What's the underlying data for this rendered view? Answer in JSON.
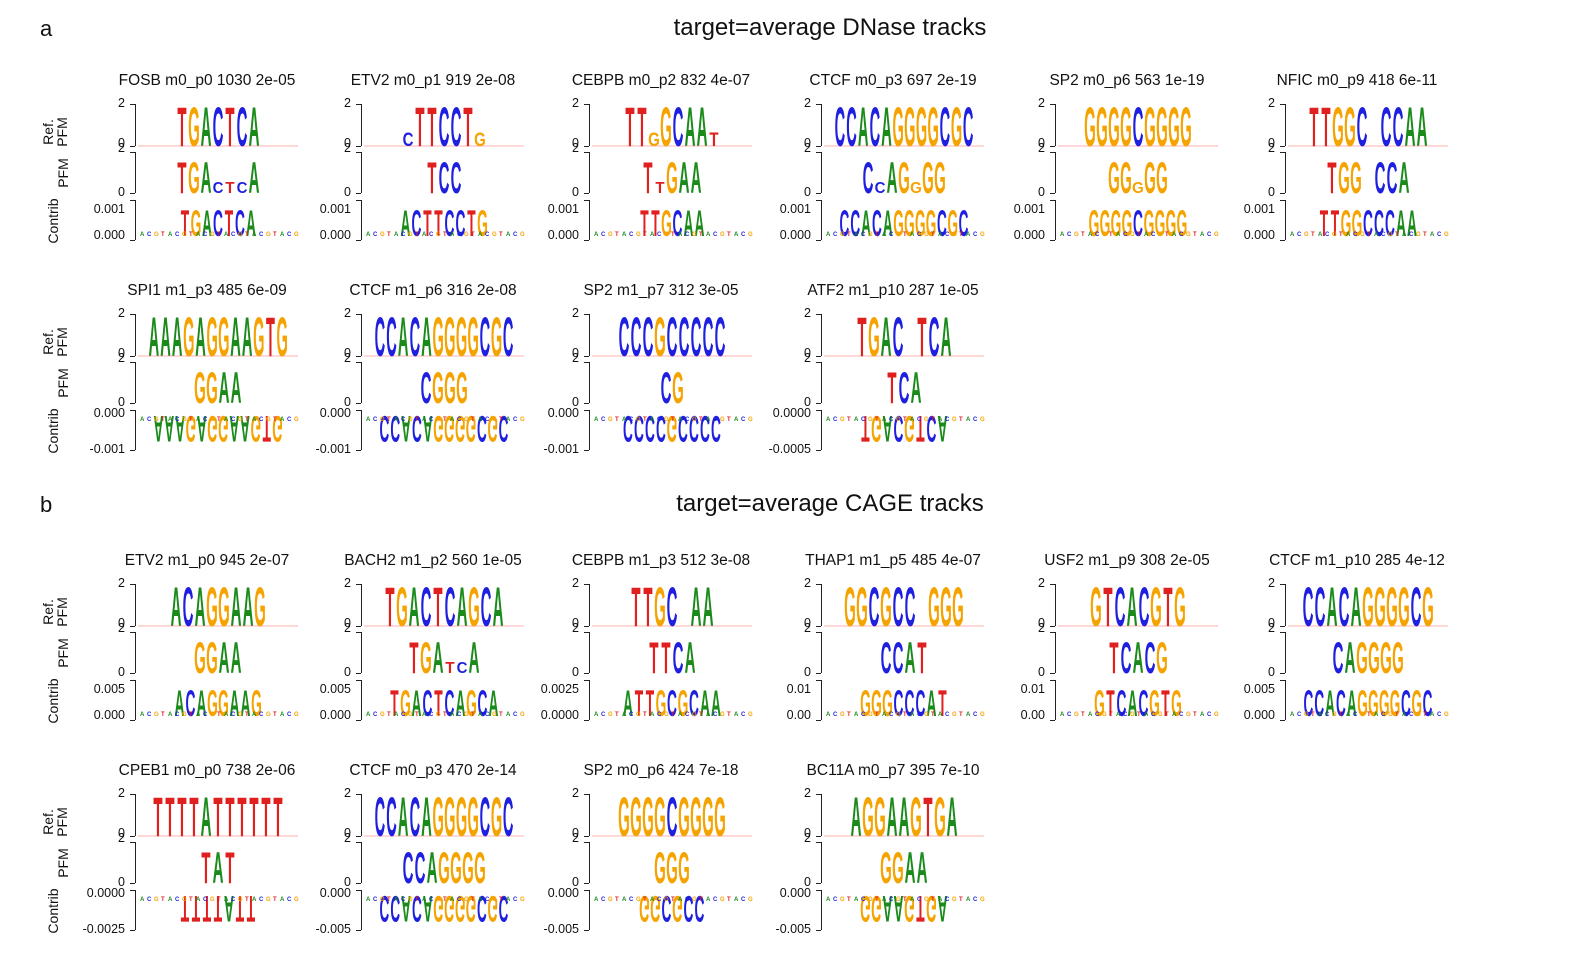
{
  "sections": [
    {
      "letter": "a",
      "title": "target=average DNase tracks",
      "motifs": [
        {
          "title": "FOSB m0_p0 1030 2e-05",
          "contrib_ticks": [
            "0.001",
            "0.000"
          ],
          "seq": "TGACTCA",
          "ref": "TGACTCA",
          "pfm": "TGActcA",
          "sign": 1
        },
        {
          "title": "ETV2 m0_p1 919 2e-08",
          "contrib_ticks": [
            "0.001",
            "0.000"
          ],
          "seq": "ACTTCCTG",
          "ref": "cTTCCTg",
          "pfm": "TCC",
          "sign": 1
        },
        {
          "title": "CEBPB m0_p2 832 4e-07",
          "contrib_ticks": [
            "0.001",
            "0.000"
          ],
          "seq": "TTGCAA",
          "ref": "TTgGCAAt",
          "pfm": "TtGAA",
          "sign": 1
        },
        {
          "title": "CTCF m0_p3 697 2e-19",
          "contrib_ticks": [
            "0.001",
            "0.000"
          ],
          "seq": "CCACAGGGGCGC",
          "ref": "CCACAGGGGCGC",
          "pfm": "CcAGgGG",
          "sign": 1
        },
        {
          "title": "SP2 m0_p6 563 1e-19",
          "contrib_ticks": [
            "0.001",
            "0.000"
          ],
          "seq": "GGGGCGGGG",
          "ref": "GGGGCGGGG",
          "pfm": "GGgGG",
          "sign": 1
        },
        {
          "title": "NFIC m0_p9 418 6e-11",
          "contrib_ticks": [
            "0.001",
            "0.000"
          ],
          "seq": "TTGGCCCAA",
          "ref": "TTGGC CCAA",
          "pfm": "TGG CCA",
          "sign": 1
        }
      ]
    },
    {
      "letter": "",
      "title": "",
      "motifs": [
        {
          "title": "SPI1 m1_p3 485 6e-09",
          "contrib_ticks": [
            "0.000",
            "-0.001"
          ],
          "seq": "AAAGAGGAAGTG",
          "ref": "AAAGAGGAAGTG",
          "pfm": "GGAA",
          "sign": -1
        },
        {
          "title": "CTCF m1_p6 316 2e-08",
          "contrib_ticks": [
            "0.000",
            "-0.001"
          ],
          "seq": "CCACAGGGGCGC",
          "ref": "CCACAGGGGCGC",
          "pfm": "CGGG",
          "sign": -1
        },
        {
          "title": "SP2 m1_p7 312 3e-05",
          "contrib_ticks": [
            "0.000",
            "-0.001"
          ],
          "seq": "CCCCGCCCC",
          "ref": "CCCGCCCCC",
          "pfm": "CG",
          "sign": -1
        },
        {
          "title": "ATF2 m1_p10 287 1e-05",
          "contrib_ticks": [
            "0.0000",
            "-0.0005"
          ],
          "seq": "TGACGTCA",
          "ref": "TGAC TCA",
          "pfm": "TCA",
          "sign": -1
        }
      ]
    },
    {
      "letter": "b",
      "title": "target=average CAGE tracks",
      "motifs": [
        {
          "title": "ETV2 m1_p0 945 2e-07",
          "contrib_ticks": [
            "0.005",
            "0.000"
          ],
          "seq": "ACAGGAAG",
          "ref": "ACAGGAAG",
          "pfm": "GGAA",
          "sign": 1
        },
        {
          "title": "BACH2 m1_p2 560 1e-05",
          "contrib_ticks": [
            "0.005",
            "0.000"
          ],
          "seq": "TGACTCAGCA",
          "ref": "TGACTCAGCA",
          "pfm": "TGAtcA",
          "sign": 1
        },
        {
          "title": "CEBPB m1_p3 512 3e-08",
          "contrib_ticks": [
            "0.0025",
            "0.0000"
          ],
          "seq": "ATTGCGCAA",
          "ref": "TTGC AA",
          "pfm": "TTCA",
          "sign": 1
        },
        {
          "title": "THAP1 m1_p5 485 4e-07",
          "contrib_ticks": [
            "0.01",
            "0.00"
          ],
          "seq": "GGGCCCAT",
          "ref": "GGCGCC GGG",
          "pfm": "CCAT",
          "sign": 1
        },
        {
          "title": "USF2 m1_p9 308 2e-05",
          "contrib_ticks": [
            "0.01",
            "0.00"
          ],
          "seq": "GTCACGTG",
          "ref": "GTCACGTG",
          "pfm": "TCACG",
          "sign": 1
        },
        {
          "title": "CTCF m1_p10 285 4e-12",
          "contrib_ticks": [
            "0.005",
            "0.000"
          ],
          "seq": "CCACAGGGGCGC",
          "ref": "CCACAGGGGCG",
          "pfm": "CAGGGG",
          "sign": 1
        }
      ]
    },
    {
      "letter": "",
      "title": "",
      "motifs": [
        {
          "title": "CPEB1 m0_p0 738 2e-06",
          "contrib_ticks": [
            "0.0000",
            "-0.0025"
          ],
          "seq": "TTTTATT",
          "ref": "TTTTATTTTTT",
          "pfm": "TAT",
          "sign": -1
        },
        {
          "title": "CTCF m0_p3 470 2e-14",
          "contrib_ticks": [
            "0.000",
            "-0.005"
          ],
          "seq": "CCACAGGGGCGC",
          "ref": "CCACAGGGGCGC",
          "pfm": "CCAGGGG",
          "sign": -1
        },
        {
          "title": "SP2 m0_p6 424 7e-18",
          "contrib_ticks": [
            "0.000",
            "-0.005"
          ],
          "seq": "GGCGCC",
          "ref": "GGGGCGGGG",
          "pfm": "GGG",
          "sign": -1
        },
        {
          "title": "BC11A m0_p7 395 7e-10",
          "contrib_ticks": [
            "0.000",
            "-0.005"
          ],
          "seq": "GGAAGTGA",
          "ref": "AGGAAGTGA",
          "pfm": "GGAA",
          "sign": -1
        }
      ]
    }
  ],
  "row_labels": {
    "ref_line1": "Ref.",
    "ref_line2": "PFM",
    "pfm": "PFM",
    "contrib": "Contrib",
    "axis_top": "2",
    "axis_bottom": "0"
  },
  "colors": {
    "A": "#1a8a1a",
    "C": "#1f1fe0",
    "G": "#f5a300",
    "T": "#e01f1f",
    "axis": "#222222",
    "baseline_ref": "#ffb0b0"
  }
}
